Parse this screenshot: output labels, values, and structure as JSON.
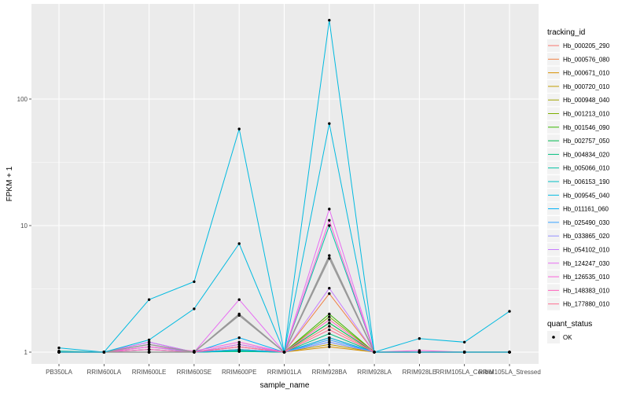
{
  "chart_data": {
    "type": "line",
    "xlabel": "sample_name",
    "ylabel": "FPKM + 1",
    "y_scale": "log10",
    "y_ticks": [
      1,
      10,
      100
    ],
    "ylim": [
      0.9,
      450
    ],
    "grid": true,
    "legend_placement": "right",
    "categories": [
      "PB350LA",
      "RRIM600LA",
      "RRIM600LE",
      "RRIM600SE",
      "RRIM600PE",
      "RRIM901LA",
      "RRIM928BA",
      "RRIM928LA",
      "RRIM928LE",
      "RRIM105LA_Control",
      "RRIM105LA_Stressed"
    ],
    "color_legend_title": "tracking_id",
    "shape_legend_title": "quant_status",
    "shape_legend_items": [
      "OK"
    ],
    "series": [
      {
        "name": "Hb_000205_290",
        "color": "#F8766D",
        "values": [
          1.0,
          1.0,
          1.05,
          1.0,
          1.1,
          1.0,
          1.6,
          1.0,
          1.0,
          1.0,
          1.0
        ]
      },
      {
        "name": "Hb_000576_080",
        "color": "#EE8043",
        "values": [
          1.0,
          1.0,
          1.1,
          1.0,
          1.15,
          1.0,
          2.9,
          1.0,
          1.0,
          1.0,
          1.0
        ]
      },
      {
        "name": "Hb_000671_010",
        "color": "#D89000",
        "values": [
          1.0,
          1.0,
          1.0,
          1.0,
          1.05,
          1.0,
          1.1,
          1.0,
          1.0,
          1.0,
          1.0
        ]
      },
      {
        "name": "Hb_000720_010",
        "color": "#C09B00",
        "values": [
          1.0,
          1.0,
          1.0,
          1.0,
          1.02,
          1.0,
          1.15,
          1.0,
          1.0,
          1.0,
          1.0
        ]
      },
      {
        "name": "Hb_000948_040",
        "color": "#A3A500",
        "values": [
          1.0,
          1.0,
          1.0,
          1.0,
          1.05,
          1.0,
          1.3,
          1.0,
          1.0,
          1.0,
          1.0
        ]
      },
      {
        "name": "Hb_001213_010",
        "color": "#7CAE00",
        "values": [
          1.0,
          1.0,
          1.0,
          1.0,
          1.03,
          1.0,
          1.9,
          1.0,
          1.0,
          1.0,
          1.0
        ]
      },
      {
        "name": "Hb_001546_090",
        "color": "#39B600",
        "values": [
          1.0,
          1.0,
          1.0,
          1.0,
          1.02,
          1.0,
          2.0,
          1.0,
          1.0,
          1.0,
          1.0
        ]
      },
      {
        "name": "Hb_002757_050",
        "color": "#00BB4E",
        "values": [
          1.0,
          1.0,
          1.0,
          1.0,
          1.01,
          1.0,
          1.7,
          1.0,
          1.0,
          1.0,
          1.0
        ]
      },
      {
        "name": "Hb_004834_020",
        "color": "#00BF7D",
        "values": [
          1.0,
          1.0,
          1.0,
          1.0,
          1.02,
          1.0,
          1.4,
          1.0,
          1.0,
          1.0,
          1.0
        ]
      },
      {
        "name": "Hb_005066_010",
        "color": "#00C1A3",
        "values": [
          1.02,
          1.0,
          1.05,
          1.0,
          1.03,
          1.0,
          10.0,
          1.0,
          1.0,
          1.0,
          1.0
        ]
      },
      {
        "name": "Hb_006153_190",
        "color": "#00BFC4",
        "values": [
          1.0,
          1.0,
          1.0,
          1.0,
          1.02,
          1.0,
          1.2,
          1.0,
          1.0,
          1.0,
          1.0
        ]
      },
      {
        "name": "Hb_009545_040",
        "color": "#00BAE0",
        "values": [
          1.08,
          1.0,
          2.6,
          3.6,
          58.0,
          1.0,
          420.0,
          1.0,
          1.28,
          1.2,
          2.1
        ]
      },
      {
        "name": "Hb_011161_060",
        "color": "#00B0F6",
        "values": [
          1.0,
          1.0,
          1.2,
          1.0,
          1.3,
          1.0,
          1.3,
          1.0,
          1.0,
          1.0,
          1.0
        ]
      },
      {
        "name": "Hb_025490_030",
        "color": "#35A2FF",
        "values": [
          1.0,
          1.0,
          1.0,
          1.0,
          1.05,
          1.0,
          1.25,
          1.0,
          1.0,
          1.0,
          1.0
        ]
      },
      {
        "name": "Hb_033865_020",
        "color": "#9590FF",
        "values": [
          1.0,
          1.0,
          1.1,
          1.0,
          1.1,
          1.0,
          1.2,
          1.0,
          1.0,
          1.0,
          1.0
        ]
      },
      {
        "name": "Hb_054102_010",
        "color": "#C77CFF",
        "values": [
          1.0,
          1.0,
          1.15,
          1.0,
          1.15,
          1.0,
          3.2,
          1.0,
          1.0,
          1.0,
          1.0
        ]
      },
      {
        "name": "Hb_124247_030",
        "color": "#E76BF3",
        "values": [
          1.0,
          1.0,
          1.2,
          1.0,
          2.6,
          1.0,
          13.5,
          1.0,
          1.0,
          1.0,
          1.0
        ]
      },
      {
        "name": "Hb_126535_010",
        "color": "#FA62DB",
        "values": [
          1.0,
          1.0,
          1.1,
          1.02,
          1.2,
          1.0,
          11.0,
          1.0,
          1.03,
          1.0,
          1.0
        ]
      },
      {
        "name": "Hb_148383_010",
        "color": "#FF62BC",
        "values": [
          1.0,
          1.0,
          1.05,
          1.0,
          1.1,
          1.0,
          1.8,
          1.0,
          1.0,
          1.0,
          1.0
        ]
      },
      {
        "name": "Hb_177880_010",
        "color": "#FF6C91",
        "values": [
          1.0,
          1.0,
          1.0,
          1.0,
          1.1,
          1.0,
          1.5,
          1.0,
          1.0,
          1.0,
          1.0
        ]
      }
    ],
    "gray_series": [
      {
        "color": "#999999",
        "values": [
          1.0,
          1.0,
          1.15,
          1.0,
          2.0,
          1.0,
          5.5,
          1.0,
          1.0,
          1.0,
          1.0
        ]
      },
      {
        "color": "#999999",
        "values": [
          1.0,
          1.0,
          1.0,
          1.0,
          1.95,
          1.0,
          5.8,
          1.0,
          1.0,
          1.0,
          1.0
        ]
      }
    ],
    "extra_cyan_series": [
      {
        "color": "#00BAE0",
        "values": [
          1.0,
          1.0,
          1.25,
          2.2,
          7.2,
          1.0,
          64.0,
          1.0,
          1.0,
          1.0,
          1.0
        ]
      }
    ]
  }
}
